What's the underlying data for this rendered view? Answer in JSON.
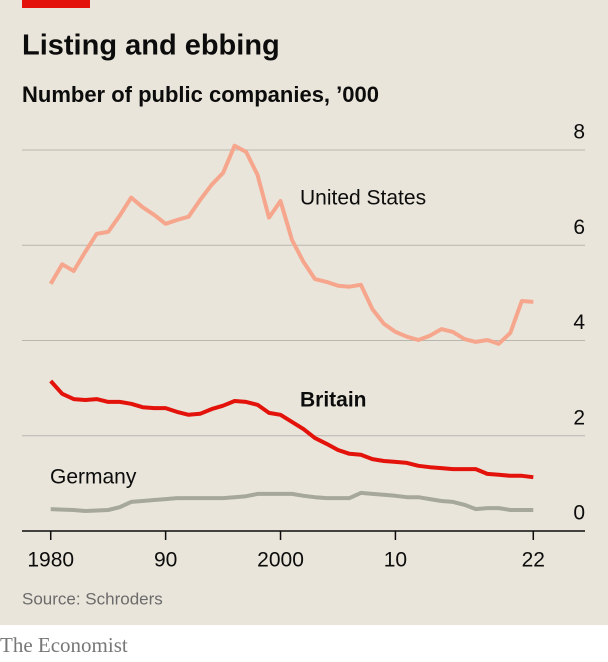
{
  "chart_data": {
    "type": "line",
    "title": "Listing and ebbing",
    "subtitle": "Number of public companies, ’000",
    "source": "Source: Schroders",
    "brand": "The Economist",
    "x": [
      1980,
      1981,
      1982,
      1983,
      1984,
      1985,
      1986,
      1987,
      1988,
      1989,
      1990,
      1991,
      1992,
      1993,
      1994,
      1995,
      1996,
      1997,
      1998,
      1999,
      2000,
      2001,
      2002,
      2003,
      2004,
      2005,
      2006,
      2007,
      2008,
      2009,
      2010,
      2011,
      2012,
      2013,
      2014,
      2015,
      2016,
      2017,
      2018,
      2019,
      2020,
      2021,
      2022
    ],
    "series": [
      {
        "name": "United States",
        "color": "#f6a68c",
        "values": [
          5.19,
          5.6,
          5.46,
          5.86,
          6.24,
          6.28,
          6.62,
          7.0,
          6.8,
          6.64,
          6.45,
          6.53,
          6.6,
          6.95,
          7.27,
          7.52,
          8.09,
          7.96,
          7.48,
          6.58,
          6.93,
          6.11,
          5.65,
          5.29,
          5.23,
          5.15,
          5.13,
          5.17,
          4.66,
          4.35,
          4.18,
          4.08,
          4.01,
          4.1,
          4.24,
          4.18,
          4.03,
          3.97,
          4.01,
          3.93,
          4.16,
          4.83,
          4.81
        ]
      },
      {
        "name": "Britain",
        "color": "#e3120b",
        "values": [
          3.15,
          2.88,
          2.77,
          2.75,
          2.77,
          2.71,
          2.71,
          2.67,
          2.6,
          2.58,
          2.58,
          2.5,
          2.44,
          2.46,
          2.56,
          2.63,
          2.73,
          2.71,
          2.65,
          2.48,
          2.44,
          2.29,
          2.14,
          1.95,
          1.83,
          1.7,
          1.62,
          1.6,
          1.51,
          1.47,
          1.45,
          1.43,
          1.37,
          1.34,
          1.32,
          1.3,
          1.3,
          1.3,
          1.2,
          1.18,
          1.16,
          1.16,
          1.13
        ]
      },
      {
        "name": "Germany",
        "color": "#a7a89c",
        "values": [
          0.46,
          0.45,
          0.44,
          0.42,
          0.43,
          0.44,
          0.5,
          0.61,
          0.63,
          0.65,
          0.67,
          0.69,
          0.69,
          0.69,
          0.69,
          0.69,
          0.71,
          0.73,
          0.78,
          0.78,
          0.78,
          0.78,
          0.74,
          0.71,
          0.69,
          0.69,
          0.69,
          0.8,
          0.78,
          0.76,
          0.74,
          0.71,
          0.71,
          0.67,
          0.63,
          0.61,
          0.55,
          0.46,
          0.48,
          0.48,
          0.44,
          0.44,
          0.44
        ]
      }
    ],
    "xlim": [
      1977.5,
      2026.5
    ],
    "xticks": [
      1980,
      {
        "value": 1990,
        "label": "90"
      },
      2000,
      {
        "value": 2010,
        "label": "10"
      },
      {
        "value": 2022,
        "label": "22"
      }
    ],
    "ylim": [
      0,
      8
    ],
    "yticks": [
      0,
      2,
      4,
      6,
      8
    ],
    "grid": true
  }
}
